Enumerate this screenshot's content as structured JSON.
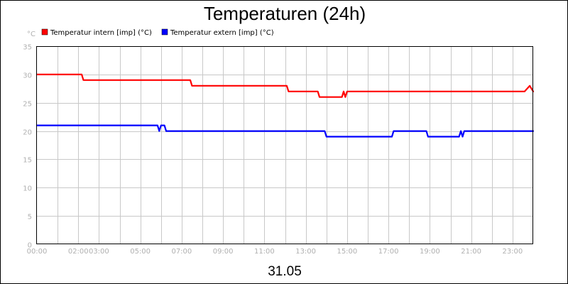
{
  "chart_data": {
    "type": "line",
    "title": "Temperaturen (24h)",
    "date_label": "31.05",
    "ylabel": "°C",
    "ylim": [
      0,
      35
    ],
    "yticks": [
      0,
      5,
      10,
      15,
      20,
      25,
      30,
      35
    ],
    "xlim": [
      "00:00",
      "24:00"
    ],
    "xticks": [
      "00:00",
      "02:00",
      "03:00",
      "05:00",
      "07:00",
      "09:00",
      "11:00",
      "13:00",
      "15:00",
      "17:00",
      "19:00",
      "21:00",
      "23:00"
    ],
    "grid": true,
    "legend_position": "top-left",
    "series": [
      {
        "name": "Temperatur intern [imp] (°C)",
        "color": "#ff0000",
        "points": [
          [
            "00:00",
            30
          ],
          [
            "02:10",
            30
          ],
          [
            "02:15",
            29
          ],
          [
            "07:25",
            29
          ],
          [
            "07:30",
            28
          ],
          [
            "12:05",
            28
          ],
          [
            "12:10",
            27
          ],
          [
            "13:35",
            27
          ],
          [
            "13:40",
            26
          ],
          [
            "14:45",
            26
          ],
          [
            "14:50",
            27
          ],
          [
            "14:55",
            26
          ],
          [
            "15:00",
            27
          ],
          [
            "23:35",
            27
          ],
          [
            "23:50",
            28
          ],
          [
            "24:00",
            27
          ]
        ]
      },
      {
        "name": "Temperatur extern [imp] (°C)",
        "color": "#0000ff",
        "points": [
          [
            "00:00",
            21
          ],
          [
            "05:50",
            21
          ],
          [
            "05:55",
            20
          ],
          [
            "06:00",
            21
          ],
          [
            "06:10",
            21
          ],
          [
            "06:15",
            20
          ],
          [
            "13:55",
            20
          ],
          [
            "14:00",
            19
          ],
          [
            "17:10",
            19
          ],
          [
            "17:15",
            20
          ],
          [
            "18:50",
            20
          ],
          [
            "18:55",
            19
          ],
          [
            "20:25",
            19
          ],
          [
            "20:30",
            20
          ],
          [
            "20:35",
            19
          ],
          [
            "20:40",
            20
          ],
          [
            "24:00",
            20
          ]
        ]
      }
    ]
  }
}
